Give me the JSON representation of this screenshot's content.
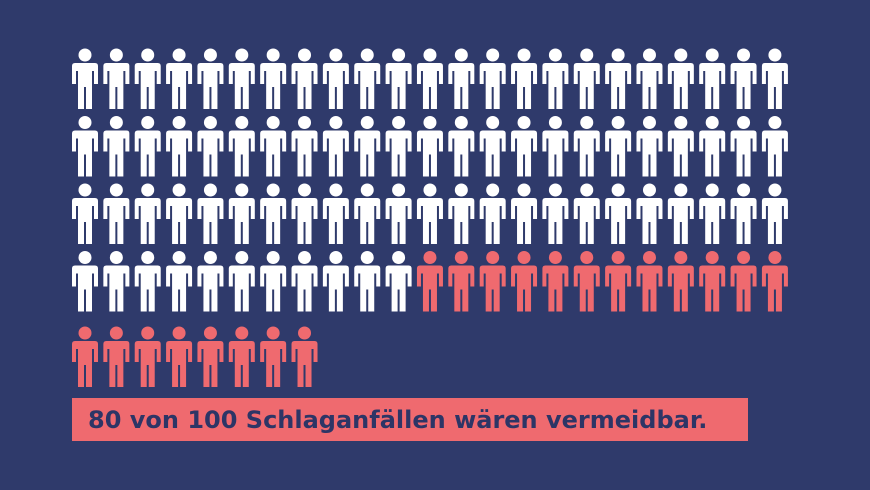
{
  "chart_data": {
    "type": "pictogram",
    "series": [
      {
        "color": "#ffffff",
        "values": [
          80
        ]
      },
      {
        "color": "#ef6a6f",
        "values": [
          20
        ]
      }
    ],
    "caption": "80 von 100 Schlaganfällen wären vermeidbar.",
    "caption_color": "#ef6a6f"
  }
}
